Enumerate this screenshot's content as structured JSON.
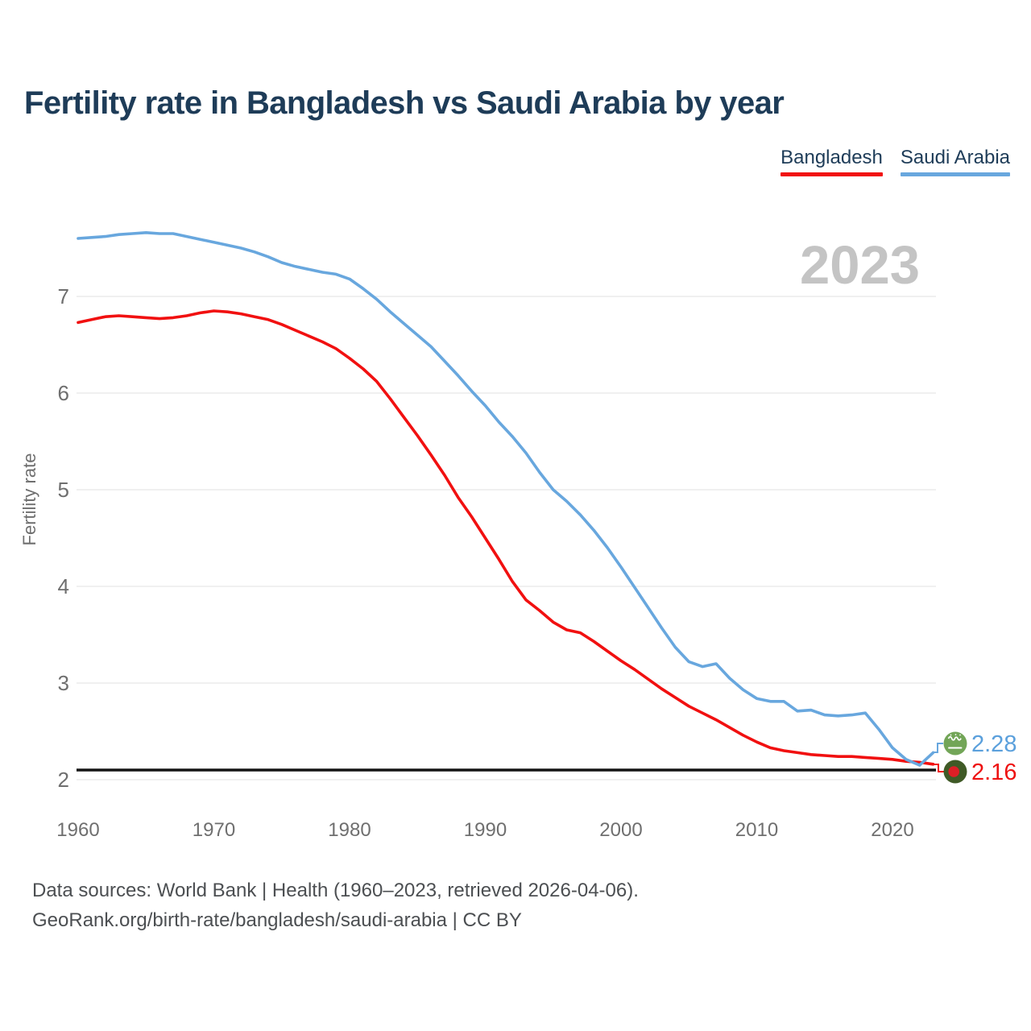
{
  "page": {
    "title": "Fertility rate in Bangladesh vs Saudi Arabia by year",
    "watermark_year": "2023"
  },
  "legend": {
    "items": [
      {
        "label": "Bangladesh",
        "color": "#f11010"
      },
      {
        "label": "Saudi Arabia",
        "color": "#68a7de"
      }
    ]
  },
  "end_labels": [
    {
      "series": "Saudi Arabia",
      "value": "2.28",
      "color": "#5ba0dc",
      "flag": "saudi-arabia-flag-icon",
      "flag_colors": {
        "circle": "#72a557",
        "glyph": "#ffffff"
      }
    },
    {
      "series": "Bangladesh",
      "value": "2.16",
      "color": "#ee1212",
      "flag": "bangladesh-flag-icon",
      "flag_colors": {
        "circle": "#3f5a26",
        "dot": "#dc1f26"
      }
    }
  ],
  "footer": {
    "line1": "Data sources: World Bank | Health (1960–2023, retrieved 2026-04-06).",
    "line2": "GeoRank.org/birth-rate/bangladesh/saudi-arabia | CC BY"
  },
  "chart_data": {
    "type": "line",
    "title": "Fertility rate in Bangladesh vs Saudi Arabia by year",
    "xlabel": "",
    "ylabel": "Fertility rate",
    "grid": true,
    "legend_position": "top-right",
    "xlim": [
      1960,
      2023
    ],
    "ylim": [
      1.9,
      7.9
    ],
    "x_ticks": [
      1960,
      1970,
      1980,
      1990,
      2000,
      2010,
      2020
    ],
    "y_ticks": [
      2,
      3,
      4,
      5,
      6,
      7
    ],
    "reference_line": {
      "value": 2.1,
      "color": "#141414"
    },
    "watermark": "2023",
    "x": [
      1960,
      1961,
      1962,
      1963,
      1964,
      1965,
      1966,
      1967,
      1968,
      1969,
      1970,
      1971,
      1972,
      1973,
      1974,
      1975,
      1976,
      1977,
      1978,
      1979,
      1980,
      1981,
      1982,
      1983,
      1984,
      1985,
      1986,
      1987,
      1988,
      1989,
      1990,
      1991,
      1992,
      1993,
      1994,
      1995,
      1996,
      1997,
      1998,
      1999,
      2000,
      2001,
      2002,
      2003,
      2004,
      2005,
      2006,
      2007,
      2008,
      2009,
      2010,
      2011,
      2012,
      2013,
      2014,
      2015,
      2016,
      2017,
      2018,
      2019,
      2020,
      2021,
      2022,
      2023
    ],
    "series": [
      {
        "name": "Bangladesh",
        "color": "#f11010",
        "end_value": 2.16,
        "values": [
          6.73,
          6.76,
          6.79,
          6.8,
          6.79,
          6.78,
          6.77,
          6.78,
          6.8,
          6.83,
          6.85,
          6.84,
          6.82,
          6.79,
          6.76,
          6.71,
          6.65,
          6.59,
          6.53,
          6.46,
          6.36,
          6.25,
          6.12,
          5.94,
          5.75,
          5.56,
          5.36,
          5.15,
          4.92,
          4.72,
          4.5,
          4.28,
          4.05,
          3.86,
          3.75,
          3.63,
          3.55,
          3.52,
          3.43,
          3.33,
          3.23,
          3.14,
          3.04,
          2.94,
          2.85,
          2.76,
          2.69,
          2.62,
          2.54,
          2.46,
          2.39,
          2.33,
          2.3,
          2.28,
          2.26,
          2.25,
          2.24,
          2.24,
          2.23,
          2.22,
          2.21,
          2.19,
          2.18,
          2.16
        ]
      },
      {
        "name": "Saudi Arabia",
        "color": "#68a7de",
        "end_value": 2.28,
        "values": [
          7.6,
          7.61,
          7.62,
          7.64,
          7.65,
          7.66,
          7.65,
          7.65,
          7.62,
          7.59,
          7.56,
          7.53,
          7.5,
          7.46,
          7.41,
          7.35,
          7.31,
          7.28,
          7.25,
          7.23,
          7.18,
          7.08,
          6.97,
          6.84,
          6.72,
          6.6,
          6.48,
          6.33,
          6.18,
          6.02,
          5.87,
          5.7,
          5.55,
          5.38,
          5.18,
          5.0,
          4.88,
          4.74,
          4.58,
          4.4,
          4.2,
          3.99,
          3.78,
          3.57,
          3.37,
          3.22,
          3.17,
          3.2,
          3.05,
          2.93,
          2.84,
          2.81,
          2.81,
          2.71,
          2.72,
          2.67,
          2.66,
          2.67,
          2.69,
          2.52,
          2.33,
          2.21,
          2.15,
          2.28
        ]
      }
    ]
  },
  "style": {
    "title_color": "#1e3c58",
    "tick_color": "#6f6f6f",
    "grid_color": "#e8e8e8",
    "watermark_color": "#c4c4c4",
    "footer_color": "#4c4f52"
  }
}
